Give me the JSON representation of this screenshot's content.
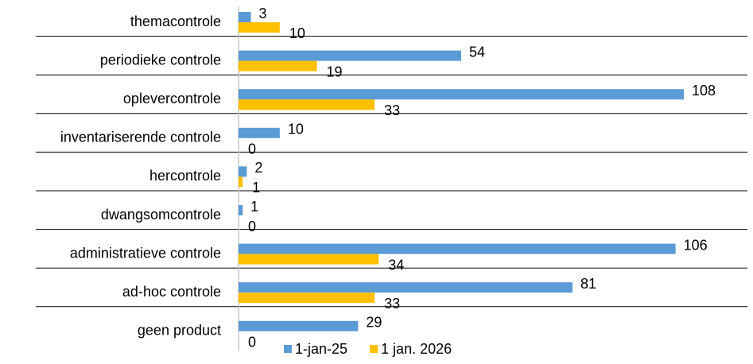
{
  "chart_data": {
    "type": "bar",
    "orientation": "horizontal",
    "categories": [
      "themacontrole",
      "periodieke controle",
      "oplevercontrole",
      "inventariserende controle",
      "hercontrole",
      "dwangsomcontrole",
      "administratieve controle",
      "ad-hoc controle",
      "geen product"
    ],
    "series": [
      {
        "name": "1-jan-25",
        "color": "#5b9bd5",
        "values": [
          3,
          54,
          108,
          10,
          2,
          1,
          106,
          81,
          29
        ]
      },
      {
        "name": "1 jan. 2026",
        "color": "#ffc000",
        "values": [
          10,
          19,
          33,
          0,
          1,
          0,
          34,
          33,
          0
        ]
      }
    ],
    "xlim": [
      0,
      108
    ],
    "legend": "bottom"
  }
}
